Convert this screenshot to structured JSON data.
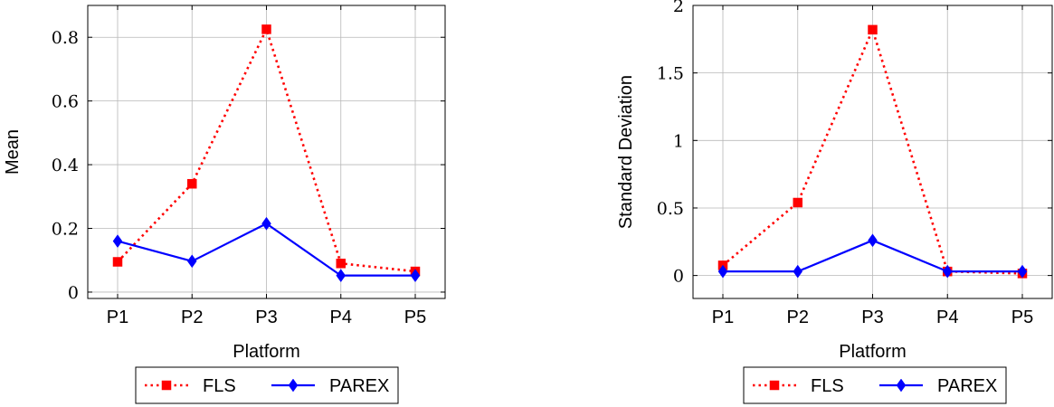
{
  "chart_data": [
    {
      "type": "line",
      "xlabel": "Platform",
      "ylabel": "Mean",
      "categories": [
        "P1",
        "P2",
        "P3",
        "P4",
        "P5"
      ],
      "ylim": [
        -0.02,
        0.9
      ],
      "yticks": [
        0,
        0.2,
        0.4,
        0.6,
        0.8
      ],
      "ytick_labels": [
        "0",
        "0.2",
        "0.4",
        "0.6",
        "0.8"
      ],
      "grid": true,
      "legend": "bottom",
      "series": [
        {
          "name": "FLS",
          "values": [
            0.095,
            0.34,
            0.825,
            0.09,
            0.065
          ],
          "color": "#ff0000",
          "style": "dotted",
          "marker": "square"
        },
        {
          "name": "PAREX",
          "values": [
            0.16,
            0.097,
            0.215,
            0.052,
            0.052
          ],
          "color": "#0000ff",
          "style": "solid",
          "marker": "diamond"
        }
      ]
    },
    {
      "type": "line",
      "xlabel": "Platform",
      "ylabel": "Standard Deviation",
      "categories": [
        "P1",
        "P2",
        "P3",
        "P4",
        "P5"
      ],
      "ylim": [
        -0.17,
        2.0
      ],
      "yticks": [
        0,
        0.5,
        1,
        1.5,
        2
      ],
      "ytick_labels": [
        "0",
        "0.5",
        "1",
        "1.5",
        "2"
      ],
      "grid": true,
      "legend": "bottom",
      "series": [
        {
          "name": "FLS",
          "values": [
            0.075,
            0.54,
            1.82,
            0.03,
            0.015
          ],
          "color": "#ff0000",
          "style": "dotted",
          "marker": "square"
        },
        {
          "name": "PAREX",
          "values": [
            0.03,
            0.03,
            0.26,
            0.03,
            0.03
          ],
          "color": "#0000ff",
          "style": "solid",
          "marker": "diamond"
        }
      ]
    }
  ]
}
